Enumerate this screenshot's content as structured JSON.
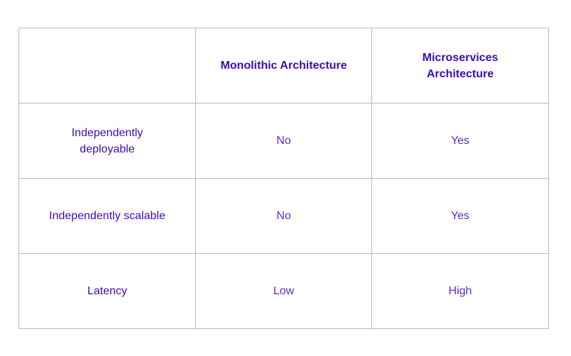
{
  "table": {
    "corner": "",
    "columns": [
      "Monolithic Architecture",
      "Microservices Architecture"
    ],
    "rows": [
      {
        "label": "Independently deployable",
        "monolithic": "No",
        "microservices": "Yes"
      },
      {
        "label": "Independently scalable",
        "monolithic": "No",
        "microservices": "Yes"
      },
      {
        "label": "Latency",
        "monolithic": "Low",
        "microservices": "High"
      }
    ]
  },
  "colors": {
    "header_text": "#3c0cb8",
    "value_text": "#5b2bc8",
    "border": "#b9b9b9"
  }
}
